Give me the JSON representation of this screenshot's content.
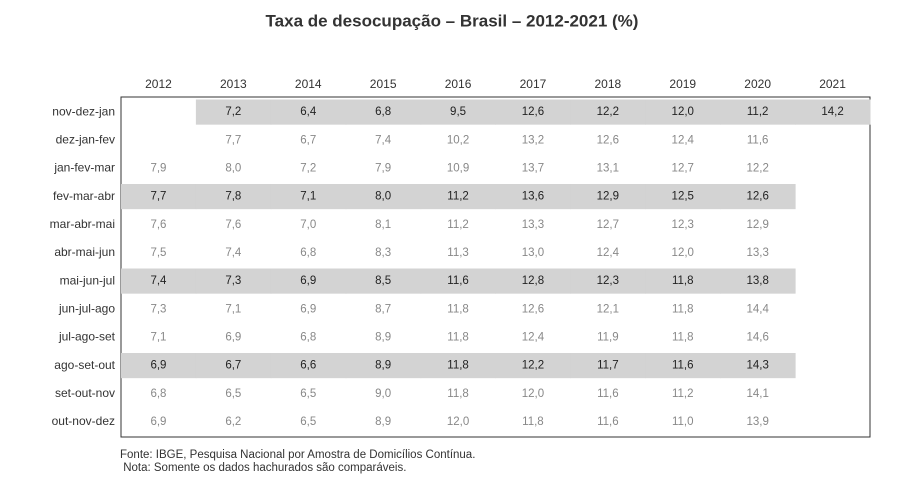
{
  "title": "Taxa de desocupação – Brasil – 2012-2021 (%)",
  "table": {
    "columns": [
      "2012",
      "2013",
      "2014",
      "2015",
      "2016",
      "2017",
      "2018",
      "2019",
      "2020",
      "2021"
    ],
    "row_labels": [
      "nov-dez-jan",
      "dez-jan-fev",
      "jan-fev-mar",
      "fev-mar-abr",
      "mar-abr-mai",
      "abr-mai-jun",
      "mai-jun-jul",
      "jun-jul-ago",
      "jul-ago-set",
      "ago-set-out",
      "set-out-nov",
      "out-nov-dez"
    ],
    "highlighted_rows": [
      0,
      3,
      6,
      9
    ],
    "rows": [
      [
        null,
        "7,2",
        "6,4",
        "6,8",
        "9,5",
        "12,6",
        "12,2",
        "12,0",
        "11,2",
        "14,2"
      ],
      [
        null,
        "7,7",
        "6,7",
        "7,4",
        "10,2",
        "13,2",
        "12,6",
        "12,4",
        "11,6",
        null
      ],
      [
        "7,9",
        "8,0",
        "7,2",
        "7,9",
        "10,9",
        "13,7",
        "13,1",
        "12,7",
        "12,2",
        null
      ],
      [
        "7,7",
        "7,8",
        "7,1",
        "8,0",
        "11,2",
        "13,6",
        "12,9",
        "12,5",
        "12,6",
        null
      ],
      [
        "7,6",
        "7,6",
        "7,0",
        "8,1",
        "11,2",
        "13,3",
        "12,7",
        "12,3",
        "12,9",
        null
      ],
      [
        "7,5",
        "7,4",
        "6,8",
        "8,3",
        "11,3",
        "13,0",
        "12,4",
        "12,0",
        "13,3",
        null
      ],
      [
        "7,4",
        "7,3",
        "6,9",
        "8,5",
        "11,6",
        "12,8",
        "12,3",
        "11,8",
        "13,8",
        null
      ],
      [
        "7,3",
        "7,1",
        "6,9",
        "8,7",
        "11,8",
        "12,6",
        "12,1",
        "11,8",
        "14,4",
        null
      ],
      [
        "7,1",
        "6,9",
        "6,8",
        "8,9",
        "11,8",
        "12,4",
        "11,9",
        "11,8",
        "14,6",
        null
      ],
      [
        "6,9",
        "6,7",
        "6,6",
        "8,9",
        "11,8",
        "12,2",
        "11,7",
        "11,6",
        "14,3",
        null
      ],
      [
        "6,8",
        "6,5",
        "6,5",
        "9,0",
        "11,8",
        "12,0",
        "11,6",
        "11,2",
        "14,1",
        null
      ],
      [
        "6,9",
        "6,2",
        "6,5",
        "8,9",
        "12,0",
        "11,8",
        "11,6",
        "11,0",
        "13,9",
        null
      ]
    ]
  },
  "footer": {
    "source": "Fonte: IBGE, Pesquisa Nacional por Amostra de Domicílios Contínua.",
    "note": " Nota: Somente os dados hachurados são comparáveis."
  }
}
